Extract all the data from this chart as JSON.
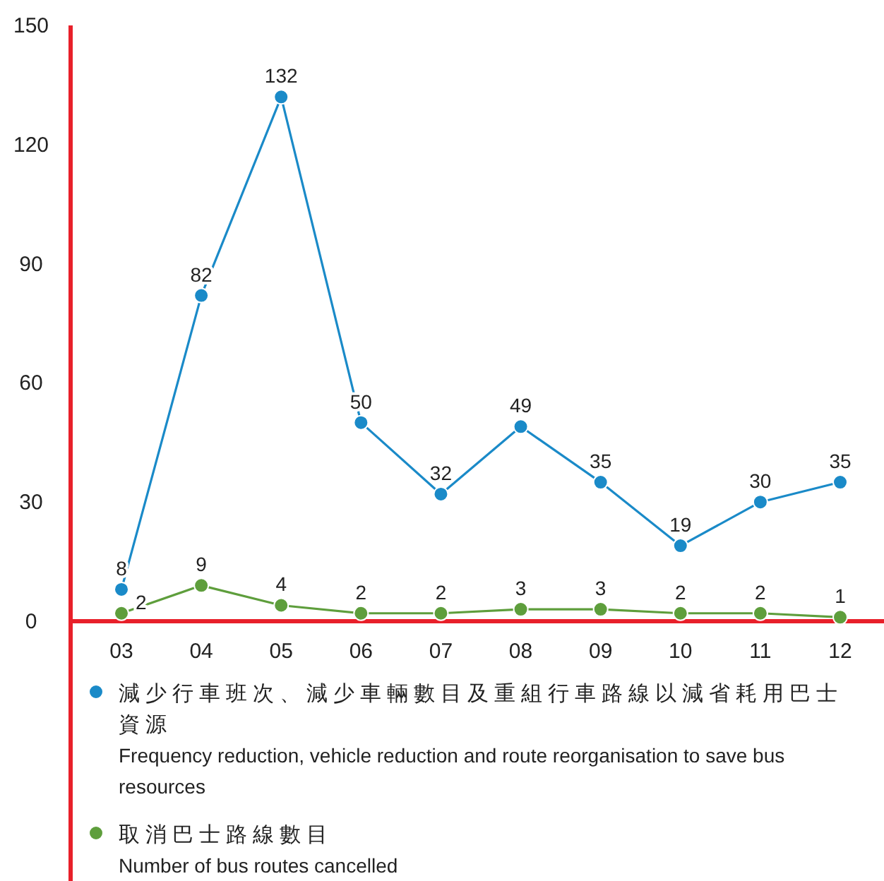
{
  "chart_data": {
    "type": "line",
    "categories": [
      "03",
      "04",
      "05",
      "06",
      "07",
      "08",
      "09",
      "10",
      "11",
      "12"
    ],
    "series": [
      {
        "name": "減少行車班次、減少車輛數目及重組行車路線以減省耗用巴士資源\nFrequency reduction, vehicle reduction and route reorganisation to save bus resources",
        "color": "#1a8ac8",
        "values": [
          8,
          82,
          132,
          50,
          32,
          49,
          35,
          19,
          30,
          35
        ]
      },
      {
        "name": "取消巴士路線數目\nNumber of bus routes cancelled",
        "color": "#5e9e3c",
        "values": [
          2,
          9,
          4,
          2,
          2,
          3,
          3,
          2,
          2,
          1
        ]
      }
    ],
    "ylim": [
      0,
      150
    ],
    "yticks": [
      0,
      30,
      60,
      90,
      120,
      150
    ],
    "data_labels": true,
    "marker": "circle",
    "legend": "bottom",
    "grid": false
  }
}
